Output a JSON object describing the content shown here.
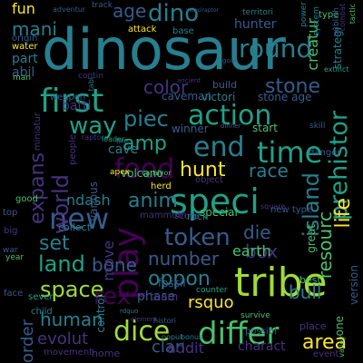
{
  "word_cloud": {
    "palette": {
      "purple": "#440154",
      "indigo": "#46337f",
      "blue": "#365c8d",
      "steel": "#277f8e",
      "teal": "#1fa187",
      "green": "#4ac16d",
      "lime": "#a0da39",
      "yellow": "#fde725"
    },
    "words": [
      {
        "text": "dinosaur",
        "color": "steel"
      },
      {
        "text": "tribe",
        "color": "lime"
      },
      {
        "text": "first",
        "color": "teal"
      },
      {
        "text": "speci",
        "color": "teal"
      },
      {
        "text": "food",
        "color": "purple"
      },
      {
        "text": "new",
        "color": "blue"
      },
      {
        "text": "play",
        "color": "purple"
      },
      {
        "text": "time",
        "color": "teal"
      },
      {
        "text": "differ",
        "color": "green"
      },
      {
        "text": "dice",
        "color": "lime"
      },
      {
        "text": "action",
        "color": "teal"
      },
      {
        "text": "round",
        "color": "steel"
      },
      {
        "text": "dino",
        "color": "steel"
      },
      {
        "text": "end",
        "color": "steel"
      },
      {
        "text": "token",
        "color": "blue"
      },
      {
        "text": "hunt",
        "color": "yellow"
      },
      {
        "text": "space",
        "color": "lime"
      },
      {
        "text": "prehistor",
        "color": "teal"
      },
      {
        "text": "island",
        "color": "steel"
      },
      {
        "text": "land",
        "color": "teal"
      },
      {
        "text": "area",
        "color": "yellow"
      },
      {
        "text": "human",
        "color": "steel"
      },
      {
        "text": "oppon",
        "color": "steel"
      },
      {
        "text": "number",
        "color": "blue"
      },
      {
        "text": "resourc",
        "color": "green"
      },
      {
        "text": "way",
        "color": "teal"
      },
      {
        "text": "piec",
        "color": "steel"
      },
      {
        "text": "world",
        "color": "indigo"
      },
      {
        "text": "life",
        "color": "yellow"
      },
      {
        "text": "stone",
        "color": "blue"
      },
      {
        "text": "expans",
        "color": "indigo"
      },
      {
        "text": "race",
        "color": "steel"
      },
      {
        "text": "die",
        "color": "blue"
      },
      {
        "text": "box",
        "color": "indigo"
      },
      {
        "text": "anim",
        "color": "steel"
      },
      {
        "text": "amp",
        "color": "teal"
      },
      {
        "text": "bull",
        "color": "steel"
      },
      {
        "text": "rex",
        "color": "purple"
      },
      {
        "text": "set",
        "color": "steel"
      },
      {
        "text": "bone",
        "color": "blue"
      },
      {
        "text": "color",
        "color": "indigo"
      },
      {
        "text": "mani",
        "color": "steel"
      },
      {
        "text": "age",
        "color": "blue"
      },
      {
        "text": "hunter",
        "color": "blue"
      },
      {
        "text": "evolut",
        "color": "indigo"
      },
      {
        "text": "clan",
        "color": "blue"
      },
      {
        "text": "rsquo",
        "color": "yellow"
      },
      {
        "text": "phase",
        "color": "blue"
      },
      {
        "text": "addit",
        "color": "indigo"
      },
      {
        "text": "charact",
        "color": "indigo"
      },
      {
        "text": "order",
        "color": "blue"
      },
      {
        "text": "fun",
        "color": "yellow"
      },
      {
        "text": "abil",
        "color": "blue"
      },
      {
        "text": "part",
        "color": "steel"
      },
      {
        "text": "battl",
        "color": "indigo"
      },
      {
        "text": "move",
        "color": "indigo"
      },
      {
        "text": "ndash",
        "color": "steel"
      },
      {
        "text": "earth",
        "color": "green"
      },
      {
        "text": "cave",
        "color": "steel"
      },
      {
        "text": "caveman",
        "color": "blue"
      },
      {
        "text": "victori",
        "color": "steel"
      },
      {
        "text": "winner",
        "color": "blue"
      },
      {
        "text": "start",
        "color": "green"
      },
      {
        "text": "special",
        "color": "green"
      },
      {
        "text": "stone age",
        "color": "blue"
      },
      {
        "text": "build",
        "color": "blue"
      },
      {
        "text": "fossil",
        "color": "blue"
      },
      {
        "text": "score",
        "color": "indigo"
      },
      {
        "text": "mammoth",
        "color": "indigo"
      },
      {
        "text": "rock",
        "color": "steel"
      },
      {
        "text": "volcano",
        "color": "green"
      },
      {
        "text": "collect",
        "color": "steel"
      },
      {
        "text": "various",
        "color": "blue"
      },
      {
        "text": "team",
        "color": "indigo"
      },
      {
        "text": "control",
        "color": "steel"
      },
      {
        "text": "child",
        "color": "steel"
      },
      {
        "text": "best",
        "color": "green"
      },
      {
        "text": "great",
        "color": "green"
      },
      {
        "text": "strategi",
        "color": "steel"
      },
      {
        "text": "creatur",
        "color": "green"
      },
      {
        "text": "version",
        "color": "blue"
      },
      {
        "text": "event",
        "color": "indigo"
      },
      {
        "text": "place",
        "color": "indigo"
      },
      {
        "text": "one",
        "color": "green"
      },
      {
        "text": "movement",
        "color": "indigo"
      },
      {
        "text": "home",
        "color": "indigo"
      },
      {
        "text": "origin",
        "color": "blue"
      },
      {
        "text": "water",
        "color": "yellow"
      },
      {
        "text": "track",
        "color": "blue"
      },
      {
        "text": "adventur",
        "color": "blue"
      },
      {
        "text": "attack",
        "color": "yellow"
      },
      {
        "text": "base",
        "color": "steel"
      },
      {
        "text": "territori",
        "color": "steel"
      },
      {
        "text": "type",
        "color": "green"
      },
      {
        "text": "power",
        "color": "steel"
      },
      {
        "text": "system",
        "color": "steel"
      },
      {
        "text": "publish",
        "color": "blue"
      },
      {
        "text": "apex",
        "color": "yellow"
      },
      {
        "text": "herd",
        "color": "yellow"
      },
      {
        "text": "carnivor",
        "color": "green"
      },
      {
        "text": "object",
        "color": "indigo"
      },
      {
        "text": "raptor",
        "color": "indigo"
      },
      {
        "text": "miniatur",
        "color": "indigo"
      },
      {
        "text": "fire",
        "color": "steel"
      },
      {
        "text": "people",
        "color": "indigo"
      },
      {
        "text": "good",
        "color": "green"
      },
      {
        "text": "top",
        "color": "blue"
      },
      {
        "text": "big",
        "color": "indigo"
      },
      {
        "text": "war",
        "color": "blue"
      },
      {
        "text": "face",
        "color": "blue"
      },
      {
        "text": "sever",
        "color": "teal"
      },
      {
        "text": "possibl",
        "color": "blue"
      },
      {
        "text": "counter",
        "color": "teal"
      },
      {
        "text": "histori",
        "color": "blue"
      },
      {
        "text": "element",
        "color": "indigo"
      },
      {
        "text": "dinner",
        "color": "blue"
      },
      {
        "text": "tabl",
        "color": "steel"
      },
      {
        "text": "weapon",
        "color": "blue"
      },
      {
        "text": "contin",
        "color": "indigo"
      },
      {
        "text": "man",
        "color": "green"
      },
      {
        "text": "ancient",
        "color": "indigo"
      },
      {
        "text": "leader",
        "color": "teal"
      },
      {
        "text": "skill",
        "color": "blue"
      },
      {
        "text": "year",
        "color": "green"
      },
      {
        "text": "survive",
        "color": "green"
      },
      {
        "text": "danger",
        "color": "blue"
      },
      {
        "text": "combat",
        "color": "indigo"
      },
      {
        "text": "valley",
        "color": "green"
      },
      {
        "text": "tactic",
        "color": "green"
      },
      {
        "text": "velociraptor",
        "color": "blue"
      },
      {
        "text": "goal",
        "color": "blue"
      },
      {
        "text": "extinct",
        "color": "teal"
      },
      {
        "text": "bonus",
        "color": "steel"
      },
      {
        "text": "popul",
        "color": "steel"
      },
      {
        "text": "rdquo",
        "color": "steel"
      },
      {
        "text": "square",
        "color": "indigo"
      },
      {
        "text": "new type",
        "color": "blue"
      },
      {
        "text": "side",
        "color": "green"
      }
    ]
  }
}
